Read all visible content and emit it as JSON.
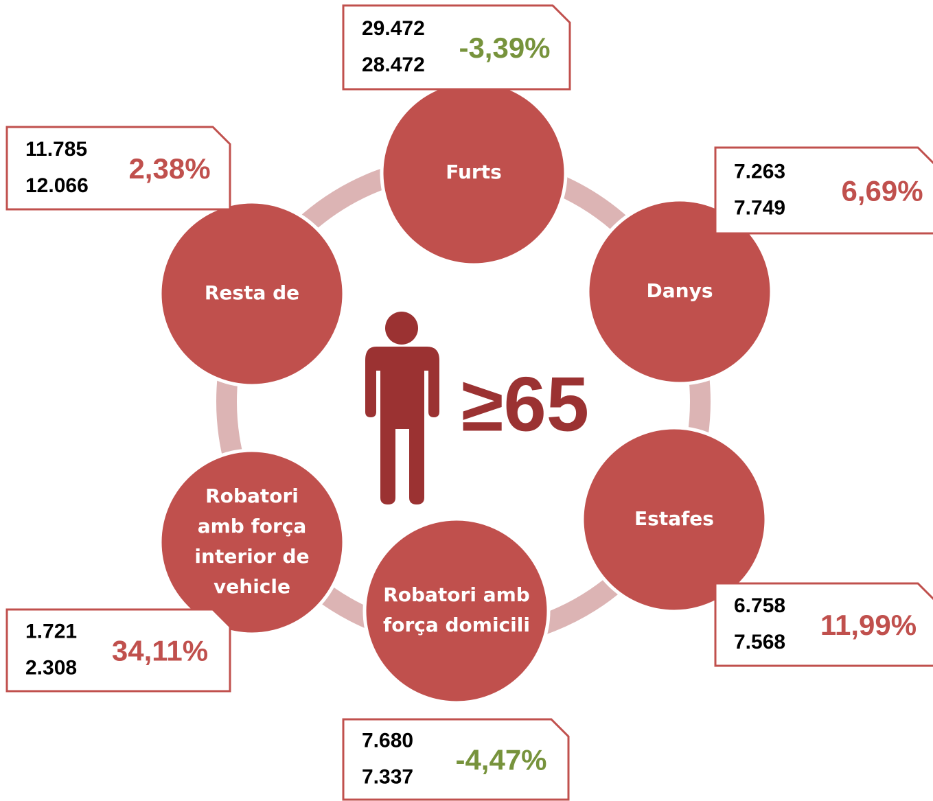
{
  "center_label": "≥65",
  "nodes": [
    {
      "lines": [
        "Furts"
      ],
      "values": [
        "29.472",
        "28.472"
      ],
      "change": "-3,39%",
      "color": "#77933c"
    },
    {
      "lines": [
        "Danys"
      ],
      "values": [
        "7.263",
        "7.749"
      ],
      "change": "6,69%",
      "color": "#c0504d"
    },
    {
      "lines": [
        "Estafes"
      ],
      "values": [
        "6.758",
        "7.568"
      ],
      "change": "11,99%",
      "color": "#c0504d"
    },
    {
      "lines": [
        "Robatori  amb",
        "força domicili"
      ],
      "values": [
        "7.680",
        "7.337"
      ],
      "change": "-4,47%",
      "color": "#77933c"
    },
    {
      "lines": [
        "Robatori",
        "amb força",
        "interior de",
        "vehicle"
      ],
      "values": [
        "1.721",
        "2.308"
      ],
      "change": "34,11%",
      "color": "#c0504d"
    },
    {
      "lines": [
        "Resta de"
      ],
      "values": [
        "11.785",
        "12.066"
      ],
      "change": "2,38%",
      "color": "#c0504d"
    }
  ]
}
